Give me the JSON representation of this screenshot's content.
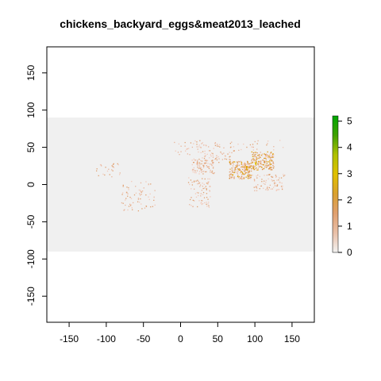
{
  "title": "chickens_backyard_eggs&meat2013_leached",
  "map": {
    "x_ticks": [
      "-150",
      "-100",
      "-50",
      "0",
      "50",
      "100",
      "150"
    ],
    "x_tick_values": [
      -150,
      -100,
      -50,
      0,
      50,
      100,
      150
    ],
    "y_ticks": [
      "-150",
      "-100",
      "-50",
      "0",
      "50",
      "100",
      "150"
    ],
    "y_tick_values": [
      -150,
      -100,
      -50,
      0,
      50,
      100,
      150
    ],
    "xlim": [
      -180,
      180
    ],
    "ylim": [
      -185,
      185
    ],
    "raster_extent": {
      "lon": [
        -180,
        180
      ],
      "lat": [
        -90,
        90
      ]
    },
    "background_color": "#f0f0f0"
  },
  "legend": {
    "ticks": [
      "0",
      "1",
      "2",
      "3",
      "4",
      "5"
    ],
    "tick_values": [
      0,
      1,
      2,
      3,
      4,
      5
    ],
    "range": [
      0,
      5.2
    ],
    "colors": [
      "#f2f2f2",
      "#e9c0a8",
      "#e0a070",
      "#d9a030",
      "#e0c000",
      "#b0c000",
      "#40a000",
      "#00a600"
    ]
  }
}
